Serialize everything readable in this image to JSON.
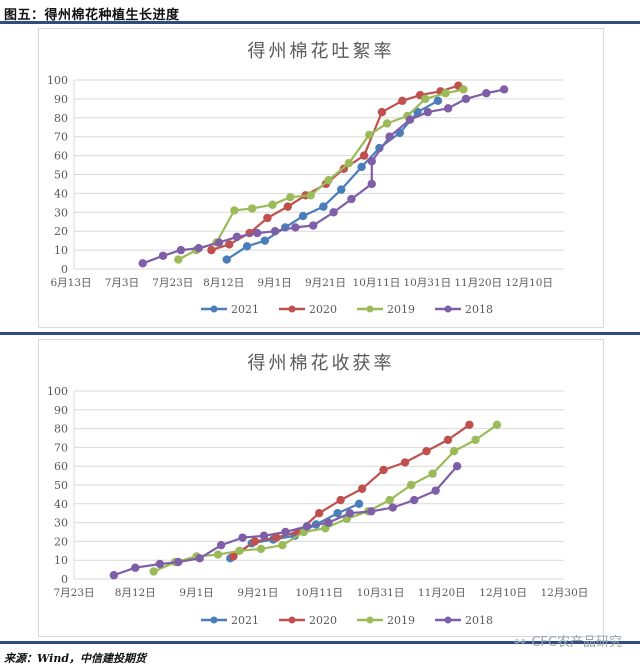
{
  "figure": {
    "title": "图五：得州棉花种植生长进度",
    "source": "来源：Wind，中信建投期货",
    "watermark": "CFC农产品研究",
    "watermark_icon": "wechat-icon"
  },
  "colors": {
    "2021": "#4a7ebb",
    "2020": "#c0504d",
    "2019": "#9bbb59",
    "2018": "#7f5ea8",
    "rule": "#2f4d7e",
    "grid": "#d9d9d9",
    "axis_text": "#595959",
    "title_text": "#595959"
  },
  "chart_data": [
    {
      "type": "line",
      "title": "得州棉花吐絮率",
      "xlabel": "",
      "ylabel": "",
      "ylim": [
        0,
        100
      ],
      "yticks": [
        0,
        10,
        20,
        30,
        40,
        50,
        60,
        70,
        80,
        90,
        100
      ],
      "x_tick_labels": [
        "6月13日",
        "7月3日",
        "7月23日",
        "8月12日",
        "9月1日",
        "9月21日",
        "10月11日",
        "10月31日",
        "11月20日",
        "12月10日"
      ],
      "x_tick_step_days": 20,
      "x_start": "6月13日",
      "x_note": "x values are days after 6月13日 (estimated from pixel positions)",
      "grid": true,
      "legend_position": "bottom",
      "series": [
        {
          "name": "2021",
          "points": [
            [
              60,
              5
            ],
            [
              68,
              12
            ],
            [
              75,
              15
            ],
            [
              83,
              22
            ],
            [
              90,
              28
            ],
            [
              98,
              33
            ],
            [
              105,
              42
            ],
            [
              113,
              54
            ],
            [
              120,
              64
            ],
            [
              128,
              72
            ],
            [
              135,
              83
            ],
            [
              143,
              89
            ]
          ]
        },
        {
          "name": "2020",
          "points": [
            [
              54,
              10
            ],
            [
              61,
              13
            ],
            [
              69,
              19
            ],
            [
              76,
              27
            ],
            [
              84,
              33
            ],
            [
              91,
              39
            ],
            [
              99,
              45
            ],
            [
              106,
              53
            ],
            [
              114,
              60
            ],
            [
              121,
              83
            ],
            [
              129,
              89
            ],
            [
              136,
              92
            ],
            [
              144,
              94
            ],
            [
              151,
              97
            ]
          ]
        },
        {
          "name": "2019",
          "points": [
            [
              41,
              5
            ],
            [
              48,
              10
            ],
            [
              56,
              14
            ],
            [
              63,
              31
            ],
            [
              70,
              32
            ],
            [
              78,
              34
            ],
            [
              85,
              38
            ],
            [
              93,
              39
            ],
            [
              100,
              47
            ],
            [
              108,
              56
            ],
            [
              116,
              71
            ],
            [
              123,
              77
            ],
            [
              131,
              81
            ],
            [
              138,
              90
            ],
            [
              146,
              93
            ],
            [
              153,
              95
            ]
          ]
        },
        {
          "name": "2018",
          "points": [
            [
              27,
              3
            ],
            [
              35,
              7
            ],
            [
              42,
              10
            ],
            [
              49,
              11
            ],
            [
              57,
              14
            ],
            [
              64,
              17
            ],
            [
              72,
              19
            ],
            [
              79,
              20
            ],
            [
              87,
              22
            ],
            [
              94,
              23
            ],
            [
              102,
              30
            ],
            [
              109,
              37
            ],
            [
              117,
              45
            ],
            [
              117,
              57
            ],
            [
              124,
              70
            ],
            [
              132,
              79
            ],
            [
              139,
              83
            ],
            [
              147,
              85
            ],
            [
              154,
              90
            ],
            [
              162,
              93
            ],
            [
              169,
              95
            ]
          ]
        }
      ]
    },
    {
      "type": "line",
      "title": "得州棉花收获率",
      "xlabel": "",
      "ylabel": "",
      "ylim": [
        0,
        100
      ],
      "yticks": [
        0,
        10,
        20,
        30,
        40,
        50,
        60,
        70,
        80,
        90,
        100
      ],
      "x_tick_labels": [
        "7月23日",
        "8月12日",
        "9月1日",
        "9月21日",
        "10月11日",
        "10月31日",
        "11月20日",
        "12月10日",
        "12月30日"
      ],
      "x_tick_step_days": 20,
      "x_start": "7月23日",
      "x_note": "x values are days after 7月23日 (estimated from pixel positions)",
      "grid": true,
      "legend_position": "bottom",
      "series": [
        {
          "name": "2021",
          "points": [
            [
              51,
              11
            ],
            [
              58,
              19
            ],
            [
              65,
              21
            ],
            [
              72,
              23
            ],
            [
              79,
              29
            ],
            [
              86,
              35
            ],
            [
              93,
              40
            ]
          ]
        },
        {
          "name": "2020",
          "points": [
            [
              52,
              12
            ],
            [
              59,
              20
            ],
            [
              66,
              22
            ],
            [
              73,
              25
            ],
            [
              80,
              35
            ],
            [
              87,
              42
            ],
            [
              94,
              48
            ],
            [
              101,
              58
            ],
            [
              108,
              62
            ],
            [
              115,
              68
            ],
            [
              122,
              74
            ],
            [
              129,
              82
            ]
          ]
        },
        {
          "name": "2019",
          "points": [
            [
              26,
              4
            ],
            [
              33,
              9
            ],
            [
              40,
              12
            ],
            [
              47,
              13
            ],
            [
              54,
              15
            ],
            [
              61,
              16
            ],
            [
              68,
              18
            ],
            [
              75,
              25
            ],
            [
              82,
              27
            ],
            [
              89,
              32
            ],
            [
              96,
              36
            ],
            [
              103,
              42
            ],
            [
              110,
              50
            ],
            [
              117,
              56
            ],
            [
              124,
              68
            ],
            [
              131,
              74
            ],
            [
              138,
              82
            ]
          ]
        },
        {
          "name": "2018",
          "points": [
            [
              13,
              2
            ],
            [
              20,
              6
            ],
            [
              28,
              8
            ],
            [
              34,
              9
            ],
            [
              41,
              11
            ],
            [
              48,
              18
            ],
            [
              55,
              22
            ],
            [
              62,
              23
            ],
            [
              69,
              25
            ],
            [
              76,
              28
            ],
            [
              83,
              30
            ],
            [
              90,
              35
            ],
            [
              97,
              36
            ],
            [
              104,
              38
            ],
            [
              111,
              42
            ],
            [
              118,
              47
            ],
            [
              125,
              60
            ]
          ]
        }
      ]
    }
  ],
  "legend": {
    "items": [
      "2021",
      "2020",
      "2019",
      "2018"
    ]
  }
}
